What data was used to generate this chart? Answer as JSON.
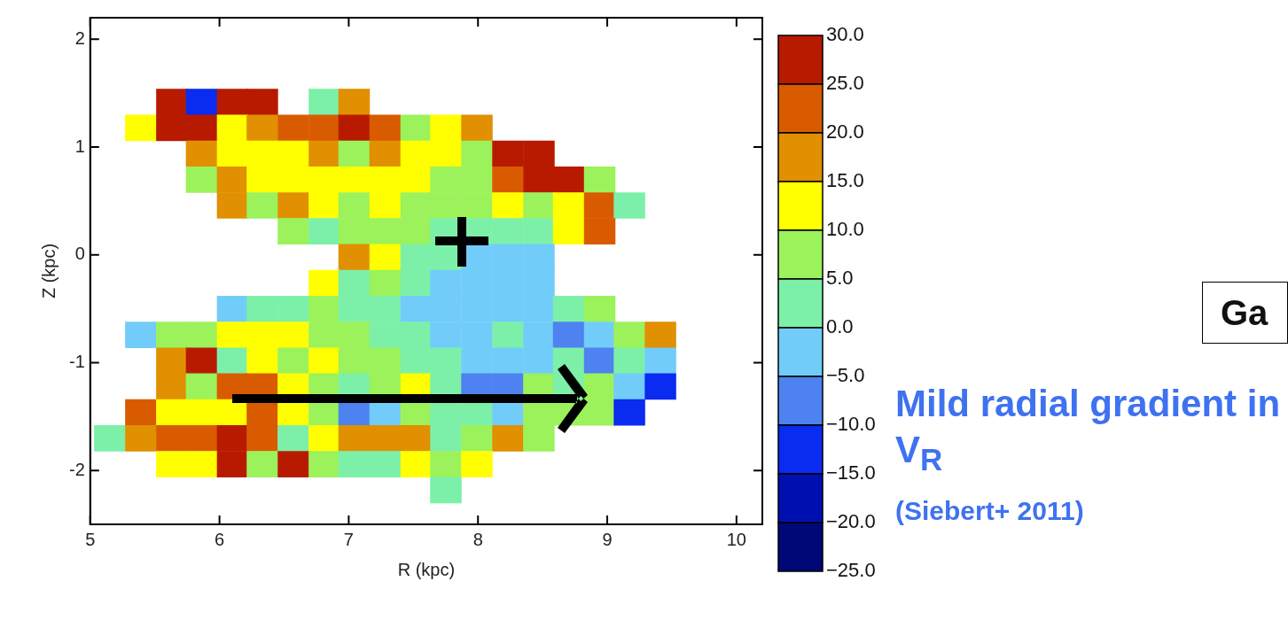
{
  "chart_data": {
    "type": "heatmap",
    "xlabel": "R (kpc)",
    "ylabel": "Z (kpc)",
    "x": [
      5.15,
      5.39,
      5.63,
      5.86,
      6.1,
      6.33,
      6.57,
      6.81,
      7.04,
      7.28,
      7.52,
      7.75,
      7.99,
      8.23,
      8.47,
      8.7,
      8.94,
      9.17,
      9.41
    ],
    "y": [
      1.42,
      1.18,
      0.94,
      0.7,
      0.46,
      0.22,
      -0.02,
      -0.26,
      -0.5,
      -0.74,
      -0.98,
      -1.22,
      -1.46,
      -1.7,
      -1.94,
      -2.18
    ],
    "cells": [
      [
        null,
        null,
        27.5,
        -12.5,
        27.5,
        27.5,
        null,
        2.5,
        17.5,
        null,
        null,
        null,
        null,
        null,
        null,
        null,
        null,
        null,
        null
      ],
      [
        null,
        12.5,
        27.5,
        27.5,
        12.5,
        17.5,
        22.5,
        22.5,
        27.5,
        22.5,
        7.5,
        12.5,
        17.5,
        null,
        null,
        null,
        null,
        null,
        null
      ],
      [
        null,
        null,
        null,
        17.5,
        12.5,
        12.5,
        12.5,
        17.5,
        7.5,
        17.5,
        12.5,
        12.5,
        7.5,
        27.5,
        27.5,
        null,
        null,
        null,
        null
      ],
      [
        null,
        null,
        null,
        7.5,
        17.5,
        12.5,
        12.5,
        12.5,
        12.5,
        12.5,
        12.5,
        7.5,
        7.5,
        22.5,
        27.5,
        27.5,
        7.5,
        null,
        null
      ],
      [
        null,
        null,
        null,
        null,
        17.5,
        7.5,
        17.5,
        12.5,
        7.5,
        12.5,
        7.5,
        7.5,
        7.5,
        12.5,
        7.5,
        12.5,
        22.5,
        2.5,
        null
      ],
      [
        null,
        null,
        null,
        null,
        null,
        null,
        7.5,
        2.5,
        7.5,
        7.5,
        7.5,
        2.5,
        2.5,
        2.5,
        2.5,
        12.5,
        22.5,
        null,
        null
      ],
      [
        null,
        null,
        null,
        null,
        null,
        null,
        null,
        null,
        17.5,
        12.5,
        2.5,
        2.5,
        -2.5,
        -2.5,
        -2.5,
        null,
        null,
        null,
        null
      ],
      [
        null,
        null,
        null,
        null,
        null,
        null,
        null,
        12.5,
        2.5,
        7.5,
        2.5,
        -2.5,
        -2.5,
        -2.5,
        -2.5,
        null,
        null,
        null,
        null
      ],
      [
        null,
        null,
        null,
        null,
        -2.5,
        2.5,
        2.5,
        7.5,
        2.5,
        2.5,
        -2.5,
        -2.5,
        -2.5,
        -2.5,
        -2.5,
        2.5,
        7.5,
        null,
        null
      ],
      [
        null,
        -2.5,
        7.5,
        7.5,
        12.5,
        12.5,
        12.5,
        7.5,
        7.5,
        2.5,
        2.5,
        -2.5,
        -2.5,
        2.5,
        -2.5,
        -7.5,
        -2.5,
        7.5,
        17.5
      ],
      [
        null,
        null,
        17.5,
        27.5,
        2.5,
        12.5,
        7.5,
        12.5,
        7.5,
        7.5,
        2.5,
        2.5,
        -2.5,
        -2.5,
        -2.5,
        2.5,
        -7.5,
        2.5,
        -2.5
      ],
      [
        null,
        null,
        17.5,
        7.5,
        22.5,
        22.5,
        12.5,
        7.5,
        2.5,
        7.5,
        12.5,
        2.5,
        -7.5,
        -7.5,
        7.5,
        2.5,
        7.5,
        -2.5,
        -12.5
      ],
      [
        null,
        22.5,
        12.5,
        12.5,
        12.5,
        22.5,
        12.5,
        7.5,
        -7.5,
        -2.5,
        7.5,
        2.5,
        2.5,
        -2.5,
        7.5,
        7.5,
        7.5,
        -12.5,
        null
      ],
      [
        2.5,
        17.5,
        22.5,
        22.5,
        27.5,
        22.5,
        2.5,
        12.5,
        17.5,
        17.5,
        17.5,
        2.5,
        7.5,
        17.5,
        7.5,
        null,
        null,
        null,
        null
      ],
      [
        null,
        null,
        12.5,
        12.5,
        27.5,
        7.5,
        27.5,
        7.5,
        2.5,
        2.5,
        12.5,
        7.5,
        12.5,
        null,
        null,
        null,
        null,
        null,
        null
      ],
      [
        null,
        null,
        null,
        null,
        null,
        null,
        null,
        null,
        null,
        null,
        null,
        2.5,
        null,
        null,
        null,
        null,
        null,
        null,
        null
      ]
    ],
    "xlim": [
      5,
      10.2
    ],
    "ylim": [
      -2.5,
      2.2
    ],
    "xticks": [
      5,
      6,
      7,
      8,
      9,
      10
    ],
    "yticks": [
      -2,
      -1,
      0,
      1,
      2
    ],
    "clim": [
      -25,
      30
    ],
    "cticks": [
      {
        "value": 30,
        "label": "30.0"
      },
      {
        "value": 25,
        "label": "25.0"
      },
      {
        "value": 20,
        "label": "20.0"
      },
      {
        "value": 15,
        "label": "15.0"
      },
      {
        "value": 10,
        "label": "10.0"
      },
      {
        "value": 5,
        "label": "5.0"
      },
      {
        "value": 0,
        "label": "0.0"
      },
      {
        "value": -5,
        "label": "−5.0"
      },
      {
        "value": -10,
        "label": "−10.0"
      },
      {
        "value": -15,
        "label": "−15.0"
      },
      {
        "value": -20,
        "label": "−20.0"
      },
      {
        "value": -25,
        "label": "−25.0"
      }
    ],
    "annotations": [
      "Mild radial gradient in V$_{R}$",
      "(Siebert+ 2011)",
      "Ga"
    ]
  }
}
